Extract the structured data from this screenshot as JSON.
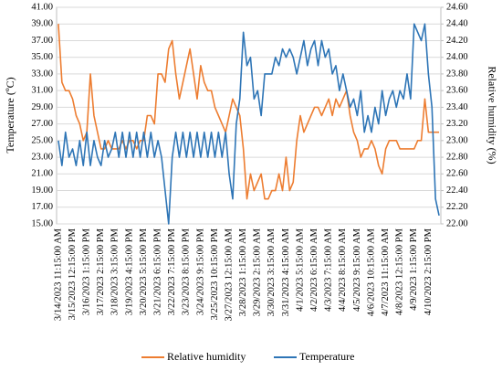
{
  "chart_data": {
    "type": "line",
    "categories": [
      "3/14/2023 11:15:00 AM",
      null,
      null,
      null,
      "3/15/2023 12:15:00 PM",
      null,
      null,
      null,
      "3/16/2023 1:15:00 PM",
      null,
      null,
      null,
      "3/17/2023 2:15:00 PM",
      null,
      null,
      null,
      "3/18/2023 3:15:00 PM",
      null,
      null,
      null,
      "3/19/2023 4:15:00 PM",
      null,
      null,
      null,
      "3/20/2023 5:15:00 PM",
      null,
      null,
      null,
      "3/21/2023 6:15:00 PM",
      null,
      null,
      null,
      "3/22/2023 7:15:00 PM",
      null,
      null,
      null,
      "3/23/2023 8:15:00 PM",
      null,
      null,
      null,
      "3/24/2023 9:15:00 PM",
      null,
      null,
      null,
      "3/25/2023 10:15:00 PM",
      null,
      null,
      null,
      "3/27/2023 12:15:00 AM",
      null,
      null,
      null,
      "3/28/2023 1:15:00 AM",
      null,
      null,
      null,
      "3/29/2023 2:15:00 AM",
      null,
      null,
      null,
      "3/30/2023 3:15:00 AM",
      null,
      null,
      null,
      "3/31/2023 4:15:00 AM",
      null,
      null,
      null,
      "4/1/2023 5:15:00 AM",
      null,
      null,
      null,
      "4/2/2023 6:15:00 AM",
      null,
      null,
      null,
      "4/3/2023 7:15:00 AM",
      null,
      null,
      null,
      "4/4/2023 8:15:00 AM",
      null,
      null,
      null,
      "4/5/2023 9:15:00 AM",
      null,
      null,
      null,
      "4/6/2023 10:15:00 AM",
      null,
      null,
      null,
      "4/7/2023 11:15:00 AM",
      null,
      null,
      null,
      "4/8/2023 12:15:00 PM",
      null,
      null,
      null,
      "4/9/2023 1:15:00 PM",
      null,
      null,
      null,
      "4/10/2023 2:15:00 PM",
      null,
      null,
      null
    ],
    "series": [
      {
        "name": "Relative humidity",
        "color": "#ed7d31",
        "axis": "y2",
        "values": [
          24.4,
          23.7,
          23.6,
          23.6,
          23.5,
          23.3,
          23.2,
          23.0,
          23.1,
          23.8,
          23.3,
          23.1,
          22.9,
          22.9,
          23.0,
          22.9,
          22.9,
          22.9,
          23.0,
          22.9,
          23.0,
          23.0,
          22.9,
          23.0,
          23.0,
          23.3,
          23.3,
          23.2,
          23.8,
          23.8,
          23.7,
          24.1,
          24.2,
          23.8,
          23.5,
          23.7,
          23.9,
          24.1,
          23.8,
          23.5,
          23.9,
          23.7,
          23.6,
          23.6,
          23.4,
          23.3,
          23.2,
          23.1,
          23.3,
          23.5,
          23.4,
          23.3,
          22.9,
          22.3,
          22.6,
          22.4,
          22.5,
          22.6,
          22.3,
          22.3,
          22.4,
          22.4,
          22.6,
          22.4,
          22.8,
          22.4,
          22.5,
          23.0,
          23.3,
          23.1,
          23.2,
          23.3,
          23.4,
          23.4,
          23.3,
          23.4,
          23.5,
          23.3,
          23.5,
          23.4,
          23.5,
          23.6,
          23.3,
          23.1,
          23.0,
          22.8,
          22.9,
          22.9,
          23.0,
          22.9,
          22.7,
          22.6,
          22.9,
          23.0,
          23.0,
          23.0,
          22.9,
          22.9,
          22.9,
          22.9,
          22.9,
          23.0,
          23.0,
          23.5,
          23.1,
          23.1,
          23.1,
          23.1
        ]
      },
      {
        "name": "Temperature",
        "color": "#2e75b6",
        "values": [
          25,
          22,
          26,
          23,
          24,
          22,
          25,
          22,
          26,
          22,
          25,
          23,
          22,
          25,
          23,
          24,
          26,
          23,
          26,
          23,
          26,
          23,
          26,
          23,
          26,
          23,
          26,
          23,
          25,
          23,
          19,
          15,
          23,
          26,
          23,
          26,
          23,
          26,
          23,
          26,
          23,
          26,
          23,
          26,
          23,
          26,
          23,
          26,
          21,
          18,
          27,
          30,
          38,
          34,
          35,
          30,
          31,
          28,
          33,
          33,
          33,
          35,
          34,
          36,
          35,
          36,
          35,
          33,
          35,
          37,
          34,
          36,
          37,
          34,
          37,
          35,
          36,
          33,
          34,
          31,
          33,
          31,
          29,
          30,
          28,
          31,
          26,
          28,
          26,
          29,
          27,
          31,
          28,
          30,
          31,
          29,
          31,
          30,
          33,
          30,
          39,
          38,
          37,
          39,
          33,
          29,
          18,
          16
        ]
      }
    ],
    "y_label": "Temperature (ºC)",
    "y2_label": "Relative humidity (%)",
    "ylim": [
      15,
      41
    ],
    "yticks": [
      {
        "value": 15,
        "label": "15.00"
      },
      {
        "value": 17,
        "label": "17.00"
      },
      {
        "value": 19,
        "label": "19.00"
      },
      {
        "value": 21,
        "label": "21.00"
      },
      {
        "value": 23,
        "label": "23.00"
      },
      {
        "value": 25,
        "label": "25.00"
      },
      {
        "value": 27,
        "label": "27.00"
      },
      {
        "value": 29,
        "label": "29.00"
      },
      {
        "value": 31,
        "label": "31.00"
      },
      {
        "value": 33,
        "label": "33.00"
      },
      {
        "value": 35,
        "label": "35.00"
      },
      {
        "value": 37,
        "label": "37.00"
      },
      {
        "value": 39,
        "label": "39.00"
      },
      {
        "value": 41,
        "label": "41.00"
      }
    ],
    "y2lim": [
      22.0,
      24.6
    ],
    "y2ticks": [
      {
        "value": 22.0,
        "label": "22.00"
      },
      {
        "value": 22.2,
        "label": "22.20"
      },
      {
        "value": 22.4,
        "label": "22.40"
      },
      {
        "value": 22.6,
        "label": "22.60"
      },
      {
        "value": 22.8,
        "label": "22.80"
      },
      {
        "value": 23.0,
        "label": "23.00"
      },
      {
        "value": 23.2,
        "label": "23.20"
      },
      {
        "value": 23.4,
        "label": "23.40"
      },
      {
        "value": 23.6,
        "label": "23.60"
      },
      {
        "value": 23.8,
        "label": "23.80"
      },
      {
        "value": 24.0,
        "label": "24.00"
      },
      {
        "value": 24.2,
        "label": "24.20"
      },
      {
        "value": 24.4,
        "label": "24.40"
      },
      {
        "value": 24.6,
        "label": "24.60"
      }
    ],
    "grid": true,
    "legend": "bottom"
  }
}
